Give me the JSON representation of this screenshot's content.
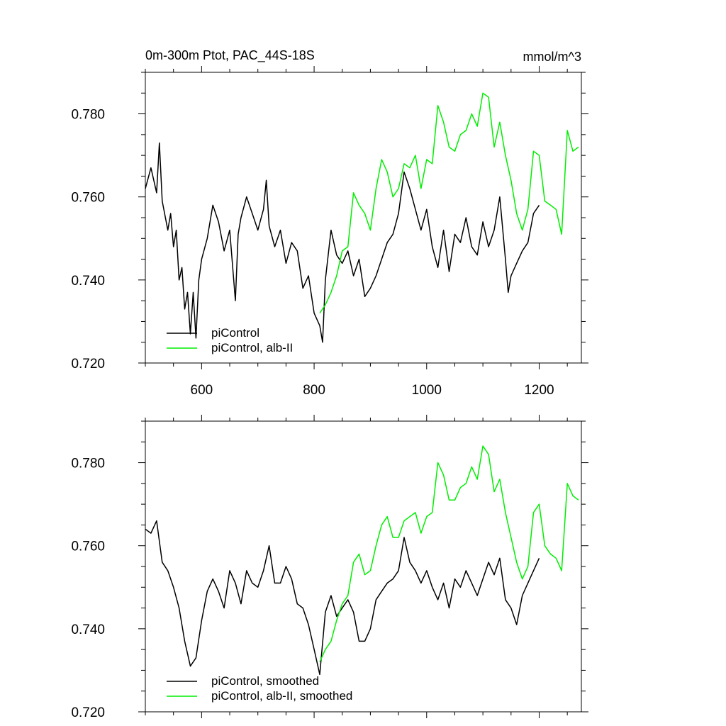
{
  "colors": {
    "piControl": "#000000",
    "alb": "#00ee00",
    "axis": "#000000",
    "background": "#ffffff"
  },
  "chart_data": [
    {
      "type": "line",
      "title": "0m-300m Ptot, PAC_44S-18S",
      "units": "mmol/m^3",
      "xlim": [
        500,
        1275
      ],
      "ylim": [
        0.72,
        0.79
      ],
      "xticks": [
        600,
        800,
        1000,
        1200
      ],
      "xtick_labels": [
        "600",
        "800",
        "1000",
        "1200"
      ],
      "yticks": [
        0.72,
        0.74,
        0.76,
        0.78
      ],
      "ytick_labels": [
        "0.720",
        "0.740",
        "0.760",
        "0.780"
      ],
      "legend_position": "bottom-left",
      "series": [
        {
          "name": "piControl",
          "color": "#000000",
          "x": [
            500,
            510,
            520,
            525,
            530,
            540,
            545,
            550,
            555,
            560,
            565,
            570,
            575,
            580,
            585,
            590,
            595,
            600,
            610,
            620,
            630,
            640,
            650,
            660,
            665,
            670,
            680,
            690,
            700,
            710,
            715,
            720,
            730,
            740,
            750,
            760,
            770,
            780,
            790,
            800,
            810,
            815,
            820,
            830,
            840,
            850,
            860,
            870,
            880,
            890,
            900,
            910,
            920,
            930,
            940,
            950,
            960,
            970,
            980,
            990,
            1000,
            1010,
            1020,
            1030,
            1040,
            1050,
            1060,
            1070,
            1080,
            1090,
            1100,
            1110,
            1120,
            1130,
            1140,
            1145,
            1150,
            1160,
            1170,
            1180,
            1190,
            1200
          ],
          "y": [
            0.762,
            0.767,
            0.761,
            0.773,
            0.759,
            0.752,
            0.756,
            0.748,
            0.752,
            0.74,
            0.743,
            0.733,
            0.737,
            0.727,
            0.737,
            0.726,
            0.74,
            0.745,
            0.75,
            0.758,
            0.754,
            0.747,
            0.752,
            0.735,
            0.751,
            0.755,
            0.76,
            0.756,
            0.752,
            0.757,
            0.764,
            0.753,
            0.748,
            0.752,
            0.744,
            0.749,
            0.747,
            0.738,
            0.741,
            0.732,
            0.729,
            0.725,
            0.74,
            0.752,
            0.746,
            0.744,
            0.747,
            0.741,
            0.745,
            0.736,
            0.738,
            0.741,
            0.745,
            0.749,
            0.751,
            0.756,
            0.766,
            0.762,
            0.757,
            0.752,
            0.757,
            0.748,
            0.743,
            0.752,
            0.742,
            0.751,
            0.749,
            0.755,
            0.748,
            0.746,
            0.754,
            0.748,
            0.752,
            0.76,
            0.745,
            0.737,
            0.741,
            0.744,
            0.747,
            0.749,
            0.756,
            0.758
          ]
        },
        {
          "name": "piControl, alb-II",
          "color": "#00ee00",
          "x": [
            810,
            820,
            830,
            840,
            850,
            860,
            870,
            880,
            890,
            900,
            910,
            920,
            930,
            940,
            950,
            960,
            970,
            980,
            990,
            1000,
            1010,
            1020,
            1030,
            1040,
            1050,
            1060,
            1070,
            1080,
            1090,
            1100,
            1110,
            1120,
            1130,
            1140,
            1150,
            1160,
            1170,
            1180,
            1190,
            1200,
            1210,
            1220,
            1230,
            1240,
            1250,
            1260,
            1270
          ],
          "y": [
            0.732,
            0.734,
            0.737,
            0.741,
            0.747,
            0.748,
            0.761,
            0.758,
            0.756,
            0.752,
            0.762,
            0.769,
            0.766,
            0.76,
            0.762,
            0.768,
            0.767,
            0.77,
            0.762,
            0.769,
            0.768,
            0.782,
            0.778,
            0.772,
            0.771,
            0.775,
            0.776,
            0.78,
            0.777,
            0.785,
            0.784,
            0.772,
            0.778,
            0.77,
            0.764,
            0.756,
            0.752,
            0.757,
            0.771,
            0.77,
            0.759,
            0.758,
            0.757,
            0.751,
            0.776,
            0.771,
            0.772
          ]
        }
      ],
      "legend": [
        "piControl",
        "piControl, alb-II"
      ]
    },
    {
      "type": "line",
      "xlim": [
        500,
        1275
      ],
      "ylim": [
        0.72,
        0.79
      ],
      "xticks": [
        600,
        800,
        1000,
        1200
      ],
      "yticks": [
        0.72,
        0.74,
        0.76,
        0.78
      ],
      "ytick_labels": [
        "0.720",
        "0.740",
        "0.760",
        "0.780"
      ],
      "legend_position": "bottom-left",
      "series": [
        {
          "name": "piControl, smoothed",
          "color": "#000000",
          "x": [
            500,
            510,
            520,
            530,
            540,
            550,
            560,
            570,
            580,
            590,
            600,
            610,
            620,
            630,
            640,
            650,
            660,
            670,
            680,
            690,
            700,
            710,
            720,
            730,
            740,
            750,
            760,
            770,
            780,
            790,
            800,
            810,
            820,
            830,
            840,
            850,
            860,
            870,
            880,
            890,
            900,
            910,
            920,
            930,
            940,
            950,
            960,
            970,
            980,
            990,
            1000,
            1010,
            1020,
            1030,
            1040,
            1050,
            1060,
            1070,
            1080,
            1090,
            1100,
            1110,
            1120,
            1130,
            1140,
            1150,
            1160,
            1170,
            1180,
            1190,
            1200
          ],
          "y": [
            0.764,
            0.763,
            0.766,
            0.756,
            0.754,
            0.75,
            0.745,
            0.737,
            0.731,
            0.733,
            0.742,
            0.749,
            0.752,
            0.749,
            0.745,
            0.754,
            0.751,
            0.746,
            0.754,
            0.751,
            0.75,
            0.754,
            0.76,
            0.751,
            0.751,
            0.755,
            0.752,
            0.746,
            0.745,
            0.741,
            0.735,
            0.729,
            0.744,
            0.748,
            0.743,
            0.745,
            0.747,
            0.744,
            0.737,
            0.737,
            0.74,
            0.747,
            0.749,
            0.751,
            0.752,
            0.754,
            0.762,
            0.756,
            0.754,
            0.751,
            0.754,
            0.75,
            0.747,
            0.751,
            0.745,
            0.752,
            0.75,
            0.754,
            0.751,
            0.748,
            0.752,
            0.756,
            0.753,
            0.757,
            0.747,
            0.745,
            0.741,
            0.748,
            0.751,
            0.754,
            0.757
          ]
        },
        {
          "name": "piControl, alb-II, smoothed",
          "color": "#00ee00",
          "x": [
            810,
            820,
            830,
            840,
            850,
            860,
            870,
            880,
            890,
            900,
            910,
            920,
            930,
            940,
            950,
            960,
            970,
            980,
            990,
            1000,
            1010,
            1020,
            1030,
            1040,
            1050,
            1060,
            1070,
            1080,
            1090,
            1100,
            1110,
            1120,
            1130,
            1140,
            1150,
            1160,
            1170,
            1180,
            1190,
            1200,
            1210,
            1220,
            1230,
            1240,
            1250,
            1260,
            1270
          ],
          "y": [
            0.732,
            0.735,
            0.737,
            0.742,
            0.746,
            0.748,
            0.756,
            0.758,
            0.753,
            0.754,
            0.76,
            0.765,
            0.767,
            0.762,
            0.762,
            0.766,
            0.767,
            0.768,
            0.763,
            0.767,
            0.768,
            0.78,
            0.777,
            0.771,
            0.771,
            0.774,
            0.775,
            0.779,
            0.776,
            0.784,
            0.782,
            0.773,
            0.776,
            0.768,
            0.762,
            0.756,
            0.752,
            0.755,
            0.768,
            0.77,
            0.76,
            0.758,
            0.757,
            0.754,
            0.775,
            0.772,
            0.771
          ]
        }
      ],
      "legend": [
        "piControl, smoothed",
        "piControl, alb-II, smoothed"
      ]
    }
  ]
}
